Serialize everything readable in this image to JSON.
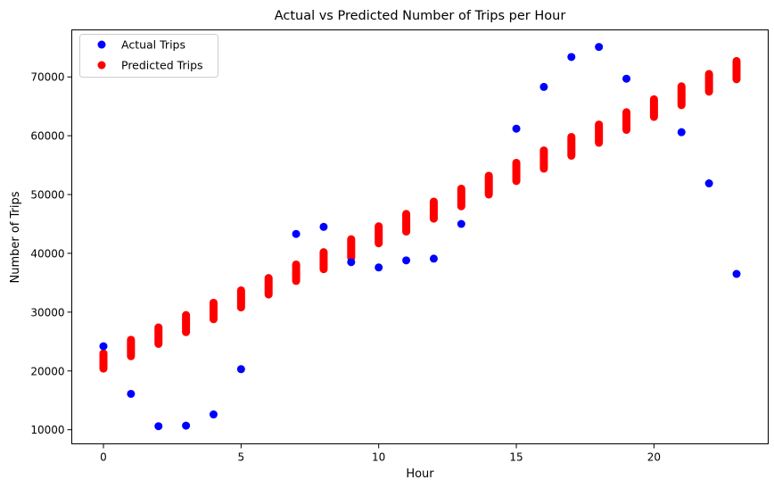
{
  "chart_data": {
    "type": "scatter",
    "title": "Actual vs Predicted Number of Trips per Hour",
    "xlabel": "Hour",
    "ylabel": "Number of Trips",
    "xlim": [
      -1.15,
      24.15
    ],
    "ylim": [
      7600,
      78000
    ],
    "xticks": [
      0,
      5,
      10,
      15,
      20
    ],
    "yticks": [
      10000,
      20000,
      30000,
      40000,
      50000,
      60000,
      70000
    ],
    "grid": false,
    "legend_position": "top-left",
    "series": [
      {
        "name": "Actual Trips",
        "color": "#0000ff",
        "x": [
          0,
          1,
          2,
          3,
          4,
          5,
          7,
          8,
          9,
          10,
          11,
          12,
          13,
          15,
          16,
          17,
          18,
          19,
          21,
          22,
          23
        ],
        "y": [
          24200,
          16100,
          10600,
          10700,
          12600,
          20300,
          43300,
          44500,
          38500,
          37600,
          38800,
          39100,
          45000,
          61200,
          68300,
          73400,
          75100,
          69700,
          60600,
          51900,
          36500
        ]
      },
      {
        "name": "Predicted Trips",
        "color": "#ff0000",
        "x": [
          0,
          1,
          2,
          3,
          4,
          5,
          6,
          7,
          8,
          9,
          10,
          11,
          12,
          13,
          14,
          15,
          16,
          17,
          18,
          19,
          20,
          21,
          22,
          23
        ],
        "y_low": [
          20400,
          22500,
          24600,
          26600,
          28800,
          30800,
          33000,
          35300,
          37300,
          39300,
          41700,
          43700,
          45900,
          48000,
          50000,
          52300,
          54400,
          56600,
          58800,
          61000,
          63200,
          65200,
          67500,
          69600
        ],
        "y_high": [
          23000,
          25300,
          27400,
          29500,
          31600,
          33700,
          35800,
          38100,
          40200,
          42400,
          44600,
          46700,
          48800,
          51000,
          53200,
          55400,
          57500,
          59800,
          61900,
          64000,
          66200,
          68400,
          70500,
          72700
        ]
      }
    ]
  }
}
